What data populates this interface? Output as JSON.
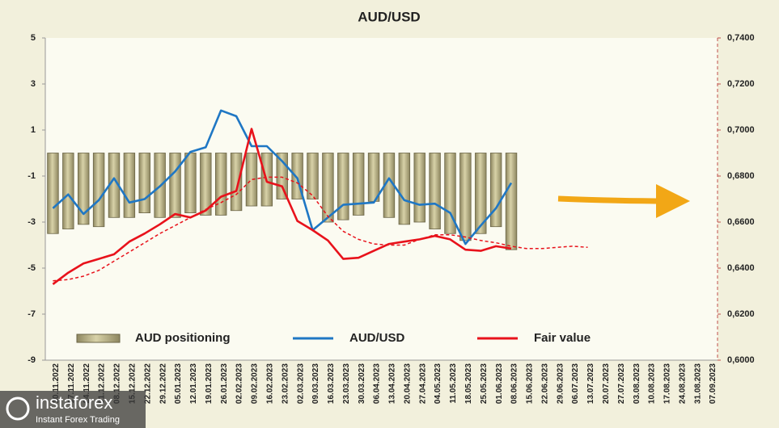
{
  "chart_data": {
    "type": "combo",
    "title": "AUD/USD",
    "categories": [
      "10.11.2022",
      "17.11.2022",
      "24.11.2022",
      "01.12.2022",
      "08.12.2022",
      "15.12.2022",
      "22.12.2022",
      "29.12.2022",
      "05.01.2023",
      "12.01.2023",
      "19.01.2023",
      "26.01.2023",
      "02.02.2023",
      "09.02.2023",
      "16.02.2023",
      "23.02.2023",
      "02.03.2023",
      "09.03.2023",
      "16.03.2023",
      "23.03.2023",
      "30.03.2023",
      "06.04.2023",
      "13.04.2023",
      "20.04.2023",
      "27.04.2023",
      "04.05.2023",
      "11.05.2023",
      "18.05.2023",
      "25.05.2023",
      "01.06.2023",
      "08.06.2023",
      "15.06.2023",
      "22.06.2023",
      "29.06.2023",
      "06.07.2023",
      "13.07.2023",
      "20.07.2023",
      "27.07.2023",
      "03.08.2023",
      "10.08.2023",
      "17.08.2023",
      "24.08.2023",
      "31.08.2023",
      "07.09.2023"
    ],
    "series": [
      {
        "name": "AUD positioning",
        "type": "bar",
        "color": "#bdb58a",
        "values": [
          -3.5,
          -3.3,
          -3.1,
          -3.2,
          -2.8,
          -2.8,
          -2.6,
          -2.8,
          -2.8,
          -2.6,
          -2.7,
          -2.7,
          -2.5,
          -2.3,
          -2.3,
          -2.0,
          -2.0,
          -2.0,
          -3.0,
          -2.9,
          -2.7,
          -2.1,
          -2.8,
          -3.1,
          -3.0,
          -3.3,
          -3.5,
          -3.8,
          -3.5,
          -3.2,
          -4.2,
          null,
          null,
          null,
          null,
          null,
          null,
          null,
          null,
          null,
          null,
          null,
          null,
          null
        ]
      },
      {
        "name": "AUD/USD",
        "type": "line",
        "axis": "y2",
        "color": "#1f77c4",
        "values": [
          0.666,
          0.672,
          0.6635,
          0.6695,
          0.679,
          0.6685,
          0.67,
          0.6755,
          0.682,
          0.6905,
          0.6925,
          0.7085,
          0.706,
          0.693,
          0.693,
          0.6865,
          0.679,
          0.6565,
          0.662,
          0.6675,
          0.668,
          0.6685,
          0.679,
          0.6695,
          0.6675,
          0.668,
          0.664,
          0.6505,
          0.6585,
          0.666,
          0.677,
          null,
          null,
          null,
          null,
          null,
          null,
          null,
          null,
          null,
          null,
          null,
          null,
          null
        ]
      },
      {
        "name": "Fair value",
        "type": "line",
        "axis": "y2",
        "color": "#e8121b",
        "values": [
          0.633,
          0.638,
          0.642,
          0.644,
          0.646,
          0.6515,
          0.655,
          0.659,
          0.6635,
          0.662,
          0.665,
          0.671,
          0.6735,
          0.7005,
          0.6775,
          0.6755,
          0.6605,
          0.6565,
          0.652,
          0.644,
          0.6445,
          0.6475,
          0.6505,
          0.6515,
          0.6525,
          0.654,
          0.6525,
          0.648,
          0.6475,
          0.6495,
          0.6485,
          null,
          null,
          null,
          null,
          null,
          null,
          null,
          null,
          null,
          null,
          null,
          null,
          null
        ]
      },
      {
        "type": "line",
        "axis": "y2",
        "color": "#e8121b",
        "dashed": true,
        "values": [
          0.6345,
          0.635,
          0.6365,
          0.639,
          0.643,
          0.647,
          0.651,
          0.655,
          0.6585,
          0.662,
          0.6655,
          0.6685,
          0.672,
          0.6785,
          0.6795,
          0.6795,
          0.677,
          0.6715,
          0.6625,
          0.656,
          0.6525,
          0.6505,
          0.65,
          0.65,
          0.6525,
          0.6545,
          0.6545,
          0.6535,
          0.652,
          0.651,
          0.6495,
          0.6485,
          0.6485,
          0.649,
          0.6495,
          0.649,
          null,
          null,
          null,
          null,
          null,
          null,
          null,
          null
        ]
      }
    ],
    "ylim": [
      -9,
      5
    ],
    "yticks": [
      -9,
      -7,
      -5,
      -3,
      -1,
      1,
      3,
      5
    ],
    "y2lim": [
      0.6,
      0.74
    ],
    "y2ticks": [
      {
        "value": 0.6,
        "label": "0,6000"
      },
      {
        "value": 0.62,
        "label": "0,6200"
      },
      {
        "value": 0.64,
        "label": "0,6400"
      },
      {
        "value": 0.66,
        "label": "0,6600"
      },
      {
        "value": 0.68,
        "label": "0,6800"
      },
      {
        "value": 0.7,
        "label": "0,7000"
      },
      {
        "value": 0.72,
        "label": "0,7200"
      },
      {
        "value": 0.74,
        "label": "0,7400"
      }
    ],
    "legend": "bottom",
    "watermark": {
      "brand": "instaforex",
      "tagline": "Instant Forex Trading"
    }
  }
}
